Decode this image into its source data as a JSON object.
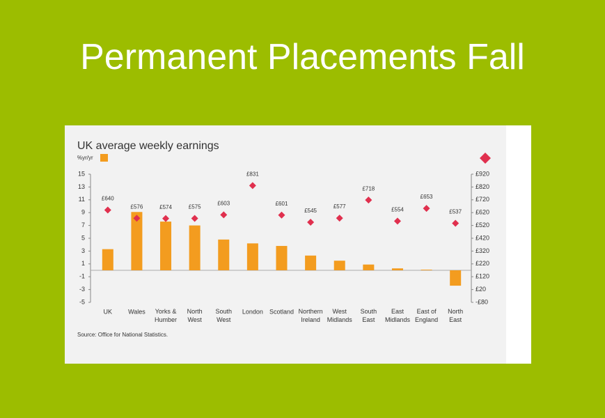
{
  "slide_title": "Permanent Placements Fall",
  "chart_data": {
    "type": "bar_diamond",
    "title": "UK average weekly earnings",
    "y_label": "%yr/yr",
    "categories": [
      "UK",
      "Wales",
      "Yorks &\nHumber",
      "North\nWest",
      "South\nWest",
      "London",
      "Scotland",
      "Northern\nIreland",
      "West\nMidlands",
      "South\nEast",
      "East\nMidlands",
      "East of\nEngland",
      "North\nEast"
    ],
    "series": [
      {
        "color": "#f39c1f",
        "values": [
          3.3,
          9.1,
          7.6,
          7.0,
          4.8,
          4.2,
          3.8,
          2.3,
          1.5,
          0.9,
          0.3,
          0.1,
          -2.4
        ]
      },
      {
        "color": "#e0304e",
        "axis": "y2",
        "values": [
          640,
          576,
          574,
          575,
          603,
          831,
          601,
          545,
          577,
          718,
          554,
          653,
          537
        ],
        "value_labels": [
          "£640",
          "£576",
          "£574",
          "£575",
          "£603",
          "£831",
          "£601",
          "£545",
          "£577",
          "£718",
          "£554",
          "£653",
          "£537"
        ]
      }
    ],
    "ylim": [
      -5,
      15
    ],
    "yticks": [
      15,
      13,
      11,
      9,
      7,
      5,
      3,
      1,
      -1,
      -3,
      -5
    ],
    "y2lim": [
      -80,
      920
    ],
    "y2ticks": [
      {
        "value": 920,
        "label": "£920"
      },
      {
        "value": 820,
        "label": "£820"
      },
      {
        "value": 720,
        "label": "£720"
      },
      {
        "value": 620,
        "label": "£620"
      },
      {
        "value": 520,
        "label": "£520"
      },
      {
        "value": 420,
        "label": "£420"
      },
      {
        "value": 320,
        "label": "£320"
      },
      {
        "value": 220,
        "label": "£220"
      },
      {
        "value": 120,
        "label": "£120"
      },
      {
        "value": 20,
        "label": "£20"
      },
      {
        "value": -80,
        "label": "-£80"
      }
    ],
    "source": "Source: Office for National Statistics."
  }
}
